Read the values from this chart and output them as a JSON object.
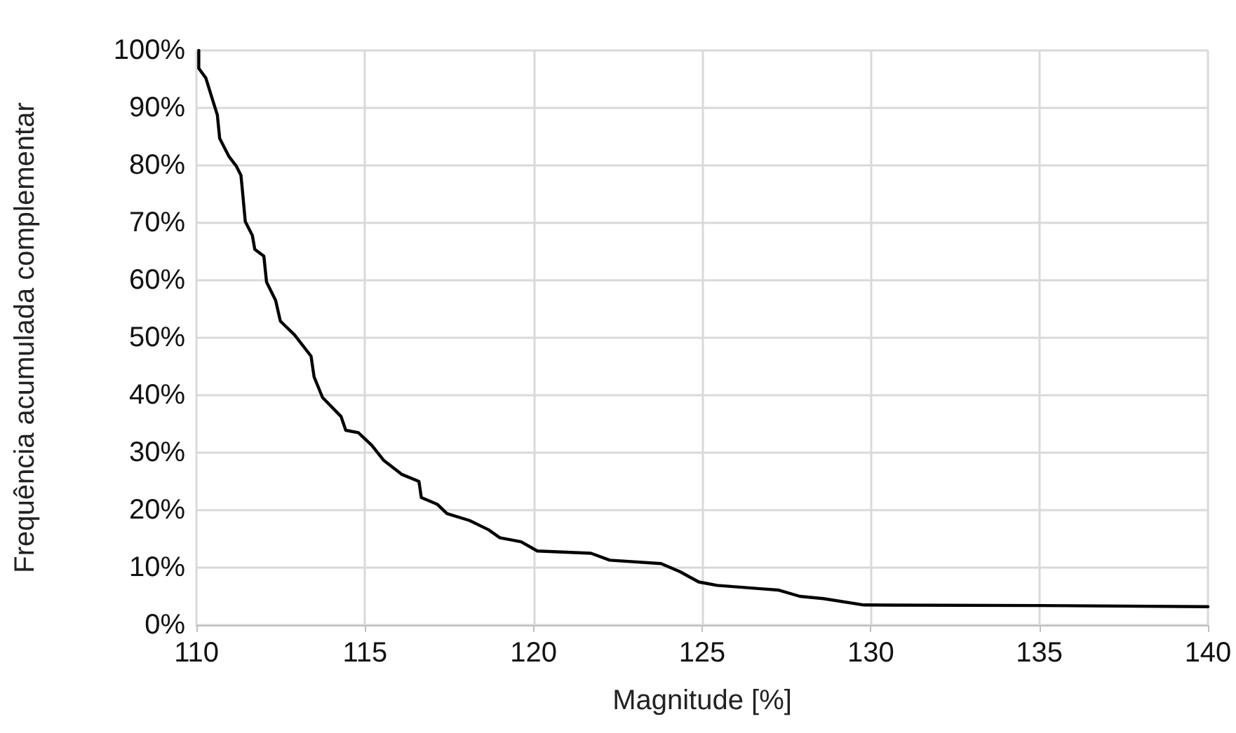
{
  "chart_data": {
    "type": "line",
    "xlabel": "Magnitude [%]",
    "ylabel": "Frequência acumulada complementar",
    "x": [
      110.07,
      110.07,
      110.28,
      110.49,
      110.62,
      110.69,
      110.97,
      111.18,
      111.32,
      111.36,
      111.45,
      111.66,
      111.73,
      112.0,
      112.08,
      112.35,
      112.49,
      112.91,
      113.4,
      113.49,
      113.74,
      114.29,
      114.43,
      114.8,
      115.2,
      115.55,
      116.1,
      116.6,
      116.67,
      117.15,
      117.43,
      118.1,
      118.66,
      119.0,
      119.63,
      120.11,
      121.7,
      122.26,
      123.78,
      124.34,
      124.9,
      125.45,
      126.8,
      127.25,
      127.9,
      128.6,
      129.8,
      135,
      140
    ],
    "series": [
      {
        "color": "#000000",
        "values": [
          100,
          96.9,
          95.2,
          91.2,
          88.8,
          84.7,
          81.5,
          79.9,
          78.3,
          75.9,
          70.2,
          67.8,
          65.4,
          64.2,
          59.7,
          56.5,
          52.9,
          50.5,
          46.8,
          43.2,
          39.6,
          36.3,
          33.9,
          33.5,
          31.3,
          28.7,
          26.2,
          25.0,
          22.2,
          21.0,
          19.4,
          18.2,
          16.6,
          15.2,
          14.5,
          12.9,
          12.5,
          11.3,
          10.7,
          9.3,
          7.5,
          6.9,
          6.3,
          6.1,
          5.0,
          4.6,
          3.5,
          3.4,
          3.2
        ]
      }
    ],
    "xlim": [
      110,
      140
    ],
    "xticks": [
      110,
      115,
      120,
      125,
      130,
      135,
      140
    ],
    "ylim": [
      0,
      100
    ],
    "yticks": [
      {
        "value": 0,
        "label": "0%"
      },
      {
        "value": 10,
        "label": "10%"
      },
      {
        "value": 20,
        "label": "20%"
      },
      {
        "value": 30,
        "label": "30%"
      },
      {
        "value": 40,
        "label": "40%"
      },
      {
        "value": 50,
        "label": "50%"
      },
      {
        "value": 60,
        "label": "60%"
      },
      {
        "value": 70,
        "label": "70%"
      },
      {
        "value": 80,
        "label": "80%"
      },
      {
        "value": 90,
        "label": "90%"
      },
      {
        "value": 100,
        "label": "100%"
      }
    ],
    "grid": true,
    "marker": "none",
    "line_style": "solid"
  }
}
